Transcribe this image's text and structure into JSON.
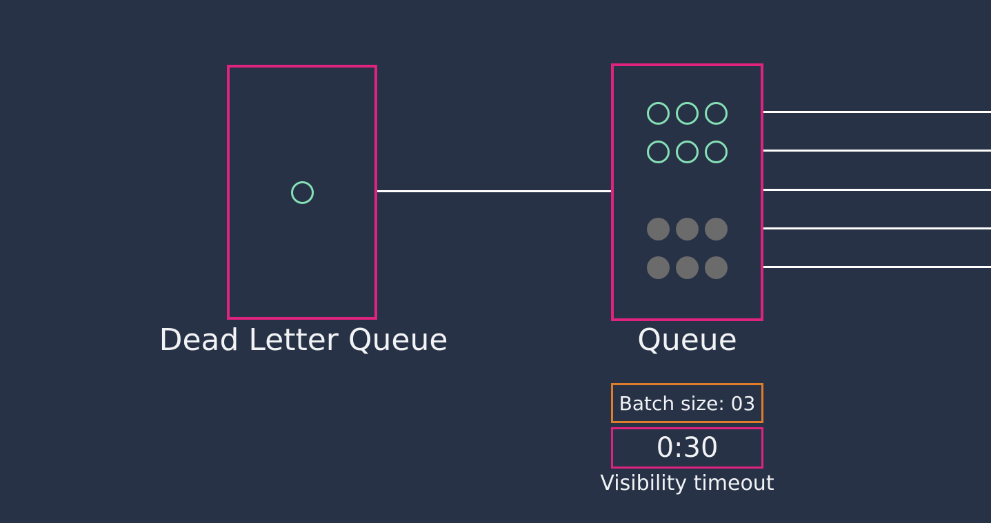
{
  "dead_letter_queue": {
    "label": "Dead Letter Queue",
    "messages": 1
  },
  "queue": {
    "label": "Queue",
    "visible_messages": 6,
    "in_flight_messages": 6,
    "batch_size_label": "Batch size: 03",
    "visibility_timeout_value": "0:30",
    "visibility_timeout_caption": "Visibility timeout",
    "outgoing_connections": 5
  },
  "colors": {
    "background": "#273246",
    "queue_border": "#e0237f",
    "batch_border": "#e07d2a",
    "visible_message": "#86e0b5",
    "in_flight_message": "#6b6b6b",
    "connector": "#ffffff",
    "text": "#f1f3f5"
  }
}
